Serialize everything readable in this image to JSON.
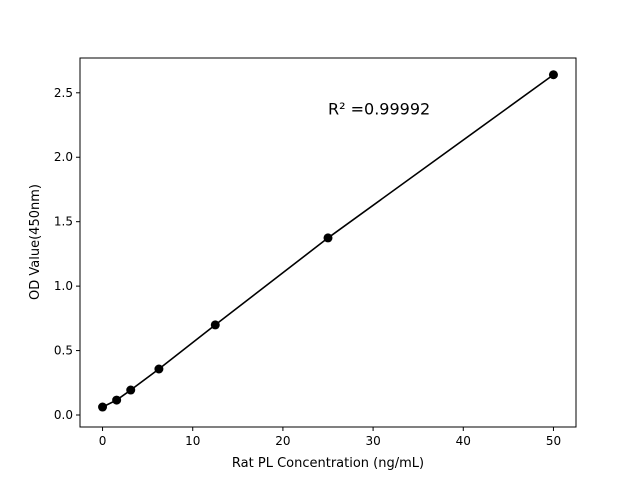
{
  "chart_data": {
    "type": "line",
    "title": "",
    "xlabel": "Rat PL Concentration (ng/mL)",
    "ylabel": "OD Value(450nm)",
    "xlim": [
      -2.5,
      52.5
    ],
    "ylim": [
      -0.093,
      2.77
    ],
    "xticks": [
      0,
      10,
      20,
      30,
      40,
      50
    ],
    "xtick_labels": [
      "0",
      "10",
      "20",
      "30",
      "40",
      "50"
    ],
    "yticks": [
      0.0,
      0.5,
      1.0,
      1.5,
      2.0,
      2.5
    ],
    "ytick_labels": [
      "0.0",
      "0.5",
      "1.0",
      "1.5",
      "2.0",
      "2.5"
    ],
    "grid": false,
    "series": [
      {
        "x": [
          0,
          1.5625,
          3.125,
          6.25,
          12.5,
          25,
          50
        ],
        "y": [
          0.062,
          0.116,
          0.194,
          0.357,
          0.699,
          1.374,
          2.64
        ],
        "color": "#000000",
        "marker": "circle"
      }
    ],
    "annotations": [
      {
        "text": "R² =0.99992",
        "x": 25,
        "y": 2.38
      }
    ]
  }
}
